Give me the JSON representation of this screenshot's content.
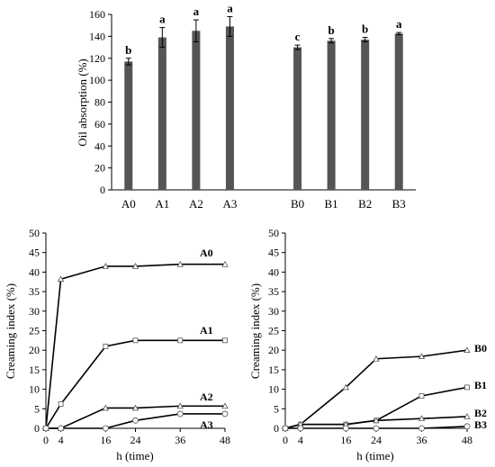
{
  "chart_data": [
    {
      "type": "bar",
      "ylabel": "Oil absorption (%)",
      "ylim": [
        0,
        160
      ],
      "yticks": [
        "0",
        "20",
        "40",
        "60",
        "80",
        "100",
        "120",
        "140",
        "160"
      ],
      "grid": false,
      "categories": [
        "A0",
        "A1",
        "A2",
        "A3",
        "",
        "B0",
        "B1",
        "B2",
        "B3"
      ],
      "values": [
        117,
        139,
        145,
        149,
        null,
        130,
        136,
        137,
        142.5
      ],
      "errors": [
        3,
        9,
        10,
        9,
        null,
        2,
        2,
        2,
        1
      ],
      "significance": [
        "b",
        "a",
        "a",
        "a",
        "",
        "c",
        "b",
        "b",
        "a"
      ],
      "colors": {
        "bar": "#555555",
        "error": "#000000"
      }
    },
    {
      "type": "line",
      "xlabel": "h (time)",
      "ylabel": "Creaming index (%)",
      "xlim": [
        0,
        48
      ],
      "ylim": [
        0,
        50
      ],
      "xticks": [
        "0",
        "4",
        "16",
        "24",
        "36",
        "48"
      ],
      "yticks": [
        "0",
        "5",
        "10",
        "15",
        "20",
        "25",
        "30",
        "35",
        "40",
        "45",
        "50"
      ],
      "x": [
        0,
        4,
        16,
        24,
        36,
        48
      ],
      "series": [
        {
          "name": "A0",
          "marker": "triangle",
          "values": [
            0,
            38.2,
            41.5,
            41.5,
            42,
            42
          ]
        },
        {
          "name": "A1",
          "marker": "square",
          "values": [
            0,
            6.2,
            21,
            22.5,
            22.5,
            22.5
          ]
        },
        {
          "name": "A2",
          "marker": "triangle",
          "values": [
            0,
            0,
            5.2,
            5.2,
            5.7,
            5.7
          ]
        },
        {
          "name": "A3",
          "marker": "circle",
          "values": [
            0,
            0,
            0,
            2,
            3.7,
            3.7
          ]
        }
      ]
    },
    {
      "type": "line",
      "xlabel": "h (time)",
      "ylabel": "Creaming index (%)",
      "xlim": [
        0,
        48
      ],
      "ylim": [
        0,
        50
      ],
      "xticks": [
        "0",
        "4",
        "16",
        "24",
        "36",
        "48"
      ],
      "yticks": [
        "0",
        "5",
        "10",
        "15",
        "20",
        "25",
        "30",
        "35",
        "40",
        "45",
        "50"
      ],
      "x": [
        0,
        4,
        16,
        24,
        36,
        48
      ],
      "series": [
        {
          "name": "B0",
          "marker": "triangle",
          "values": [
            0,
            1,
            10.5,
            17.8,
            18.4,
            20
          ]
        },
        {
          "name": "B1",
          "marker": "square",
          "values": [
            0,
            1,
            1,
            2,
            8.3,
            10.5
          ]
        },
        {
          "name": "B2",
          "marker": "triangle",
          "values": [
            0,
            1,
            1,
            2,
            2.5,
            3
          ]
        },
        {
          "name": "B3",
          "marker": "circle",
          "values": [
            0,
            0,
            0,
            0,
            0,
            0.5
          ]
        }
      ]
    }
  ]
}
